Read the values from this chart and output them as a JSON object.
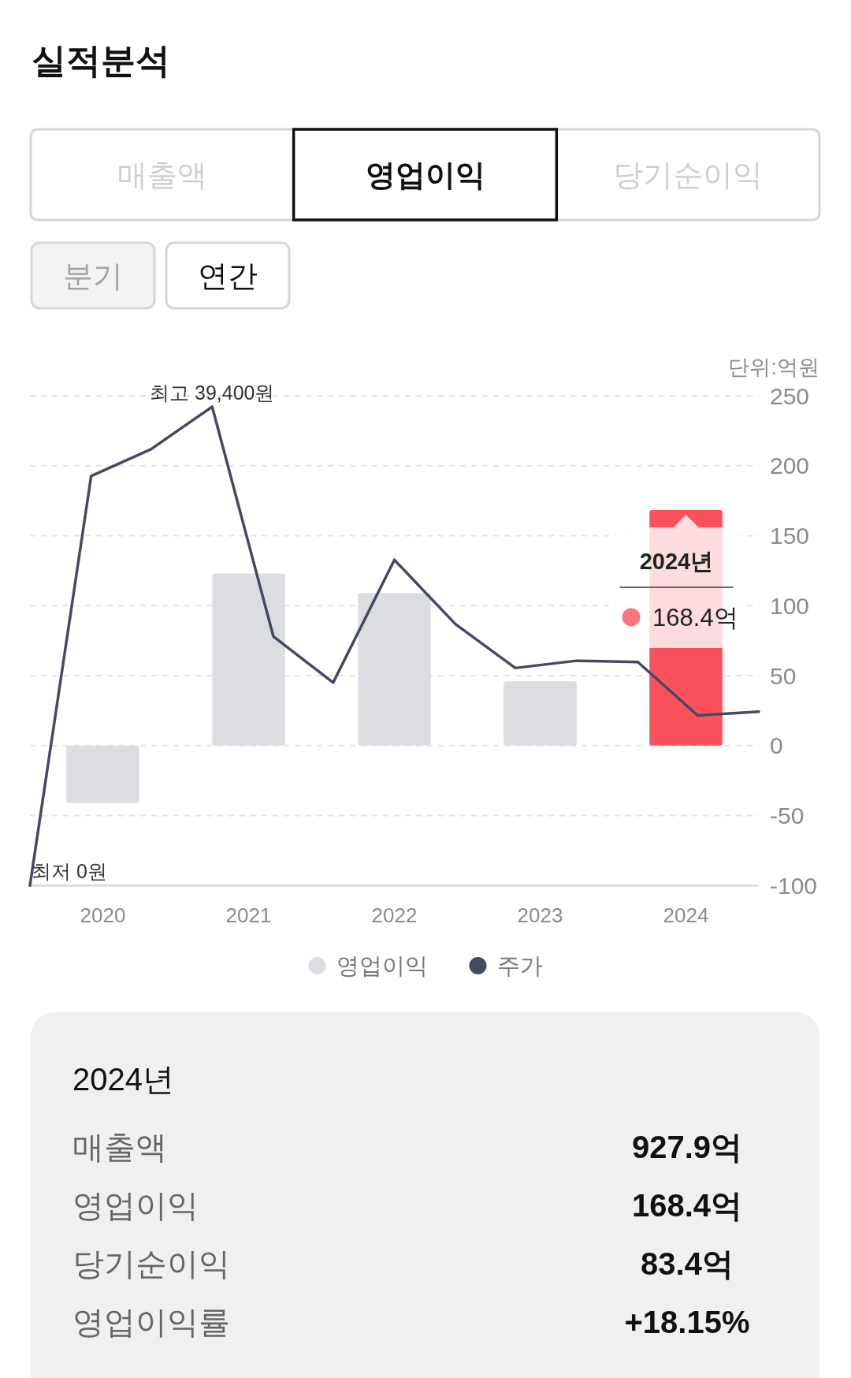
{
  "chart_data": [
    {
      "type": "other",
      "title": "실적분석",
      "annotations": [
        "매출액",
        "영업이익",
        "당기순이익",
        "분기",
        "연간"
      ]
    },
    {
      "type": "bar",
      "ylabel": "단위:억원",
      "x": [
        2020,
        2021,
        2022,
        2023,
        2024
      ],
      "xlim": [
        2019.5,
        2024.5
      ],
      "xticks": [
        2020,
        2021,
        2022,
        2023,
        2024
      ],
      "ylim": [
        -100,
        250
      ],
      "yticks": [
        -100,
        -50,
        0,
        50,
        100,
        150,
        200,
        250
      ],
      "y2lim": [
        0,
        40300
      ],
      "grid": "y",
      "legend": "bottom",
      "series": [
        {
          "name": "영업이익",
          "type": "bar",
          "color": "#dcdde1",
          "colors": [
            "#dcdde1",
            "#dcdde1",
            "#dcdde1",
            "#dcdde1",
            "#f9525c"
          ],
          "values": [
            -41,
            123,
            109,
            46,
            168.4
          ],
          "value_labels": [
            null,
            null,
            null,
            null,
            "168.4억"
          ]
        },
        {
          "name": "주가",
          "type": "line",
          "axis": "y2",
          "color": "#454a60",
          "x": [
            2019.5,
            2019.92,
            2020.33,
            2020.75,
            2021.17,
            2021.58,
            2022.0,
            2022.42,
            2022.83,
            2023.25,
            2023.67,
            2024.08,
            2024.5
          ],
          "values": [
            0,
            33700,
            35900,
            39400,
            20500,
            16700,
            26800,
            21500,
            17900,
            18500,
            18400,
            14000,
            14300
          ],
          "value_labels": [
            "최저 0원",
            null,
            null,
            "최고 39,400원",
            null,
            null,
            null,
            null,
            null,
            null,
            null,
            null,
            null
          ]
        }
      ],
      "annotations": [
        {
          "text": "2024년",
          "x": 2024,
          "y": 168.4
        }
      ]
    },
    {
      "type": "other",
      "title": "2024년",
      "annotations": [
        "매출액",
        "927.9억",
        "영업이익",
        "168.4억",
        "당기순이익",
        "83.4억",
        "영업이익률",
        "+18.15%"
      ]
    }
  ]
}
